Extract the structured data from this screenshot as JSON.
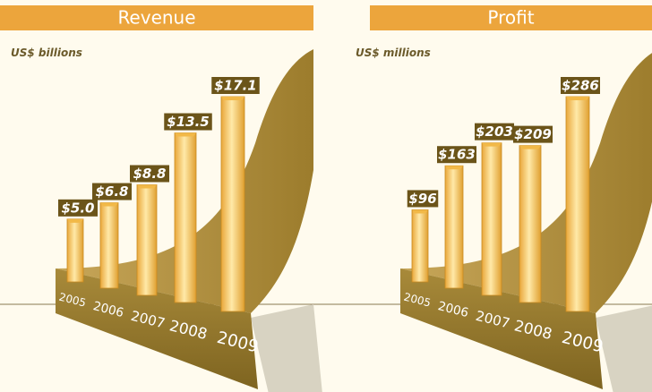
{
  "chart_data": [
    {
      "type": "bar",
      "title": "Revenue",
      "subtitle": "US$ billions",
      "categories": [
        "2005",
        "2006",
        "2007",
        "2008",
        "2009"
      ],
      "values": [
        5.0,
        6.8,
        8.8,
        13.5,
        17.1
      ],
      "value_labels": [
        "$5.0",
        "$6.8",
        "$8.8",
        "$13.5",
        "$17.1"
      ],
      "color": "#f2b948"
    },
    {
      "type": "bar",
      "title": "Profit",
      "subtitle": "US$ millions",
      "categories": [
        "2005",
        "2006",
        "2007",
        "2008",
        "2009"
      ],
      "values": [
        96,
        163,
        203,
        209,
        286
      ],
      "value_labels": [
        "$96",
        "$163",
        "$203",
        "$209",
        "$286"
      ],
      "color": "#f2b948"
    }
  ]
}
